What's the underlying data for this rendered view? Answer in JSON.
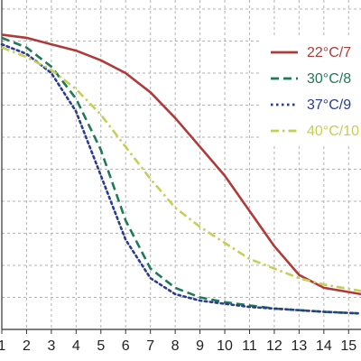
{
  "chart_data": {
    "type": "line",
    "title": "",
    "xlabel": "",
    "ylabel": "",
    "x_ticks": [
      1,
      2,
      3,
      4,
      5,
      6,
      7,
      8,
      9,
      10,
      11,
      12,
      13,
      14,
      15
    ],
    "xlim": [
      1,
      15.5
    ],
    "ylim": [
      0,
      100
    ],
    "grid": true,
    "legend_position": "top-right",
    "series": [
      {
        "name": "22°C/7",
        "color": "#b03a3a",
        "dash": "solid",
        "x": [
          1,
          2,
          3,
          4,
          5,
          6,
          7,
          8,
          9,
          10,
          11,
          12,
          13,
          14,
          15.5
        ],
        "y": [
          92,
          91,
          89,
          87,
          84,
          80,
          74,
          66,
          57,
          48,
          37,
          26,
          17,
          13,
          11
        ]
      },
      {
        "name": "30°C/8",
        "color": "#1f7a57",
        "dash": "dashed",
        "x": [
          1,
          2,
          3,
          4,
          5,
          6,
          7,
          8,
          9,
          10,
          11,
          12,
          13,
          14,
          15.5
        ],
        "y": [
          91,
          88,
          82,
          72,
          56,
          34,
          19,
          13,
          10,
          8.5,
          7.5,
          6.5,
          6,
          5.5,
          5
        ]
      },
      {
        "name": "37°C/9",
        "color": "#2b3b8f",
        "dash": "dotted",
        "x": [
          1,
          2,
          3,
          4,
          5,
          6,
          7,
          8,
          9,
          10,
          11,
          12,
          13,
          14,
          15.5
        ],
        "y": [
          89,
          86,
          80,
          68,
          48,
          28,
          16,
          11,
          9,
          8,
          7,
          6.5,
          6,
          5.5,
          5
        ]
      },
      {
        "name": "40°C/10",
        "color": "#c4cf55",
        "dash": "dashdot",
        "x": [
          1,
          2,
          3,
          4,
          5,
          6,
          7,
          8,
          9,
          10,
          11,
          12,
          13,
          14,
          15.5
        ],
        "y": [
          88,
          85,
          81,
          75,
          67,
          57,
          47,
          38,
          32,
          27,
          22,
          19,
          16,
          14,
          12
        ]
      }
    ]
  }
}
